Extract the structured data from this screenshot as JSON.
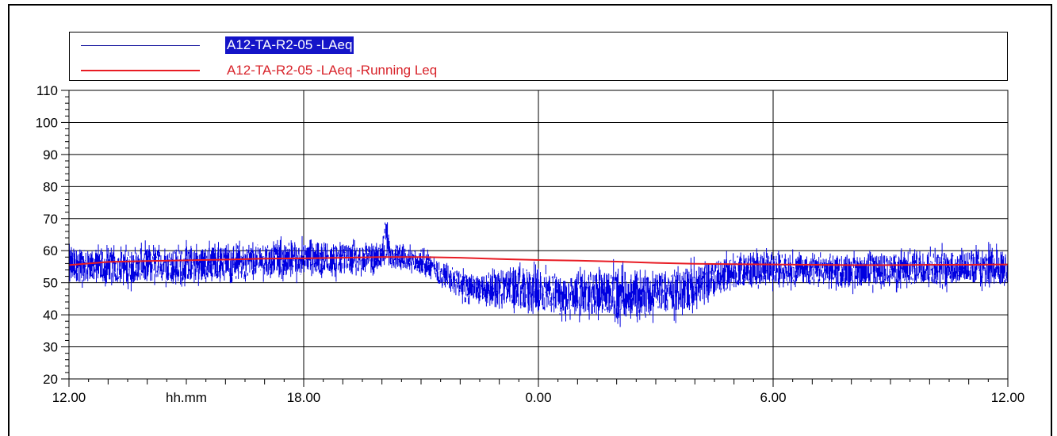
{
  "chart_data": {
    "type": "line",
    "title": "",
    "xlabel": "hh.mm",
    "ylabel": "",
    "xlim": [
      "12.00",
      "12.00 (+24h)"
    ],
    "ylim": [
      20,
      110
    ],
    "grid": true,
    "legend_placement": "top",
    "x_tick_labels": [
      "12.00",
      "18.00",
      "0.00",
      "6.00",
      "12.00"
    ],
    "y_tick_labels": [
      "110",
      "100",
      "90",
      "80",
      "70",
      "60",
      "50",
      "40",
      "30",
      "20"
    ],
    "series": [
      {
        "name": "A12-TA-R2-05 -LAeq",
        "color": "#0000e0",
        "hours": [
          0,
          1,
          2,
          3,
          4,
          5,
          6,
          7,
          8,
          8.1,
          8.2,
          9,
          9.5,
          10,
          10.5,
          11,
          11.5,
          12,
          12.5,
          13,
          13.5,
          14,
          14.5,
          15,
          15.5,
          16,
          16.5,
          17,
          17.5,
          18,
          18.5,
          19,
          20,
          21,
          22,
          23,
          24
        ],
        "lower": [
          47,
          46,
          47,
          47,
          48,
          49,
          49,
          50,
          52,
          50,
          53,
          51,
          47,
          43,
          41,
          40,
          38,
          37,
          36,
          36,
          36,
          35,
          35,
          36,
          37,
          39,
          43,
          46,
          46,
          47,
          47,
          47,
          46,
          46,
          46,
          46,
          46
        ],
        "upper": [
          64,
          63,
          64,
          64,
          65,
          65,
          66,
          65,
          64,
          75,
          64,
          62,
          59,
          56,
          55,
          57,
          58,
          58,
          56,
          57,
          57,
          58,
          58,
          57,
          58,
          59,
          60,
          61,
          62,
          62,
          62,
          61,
          61,
          62,
          63,
          64,
          63
        ]
      },
      {
        "name": "A12-TA-R2-05 -LAeq -Running Leq",
        "color": "#e81c24",
        "hours": [
          0,
          0.5,
          1,
          2,
          3,
          4,
          5,
          6,
          7,
          8,
          9,
          10,
          11,
          12,
          13,
          14,
          15,
          16,
          17,
          18,
          19,
          20,
          21,
          22,
          23,
          24
        ],
        "values": [
          55.5,
          56.0,
          56.5,
          56.8,
          57.0,
          57.2,
          57.5,
          57.6,
          57.8,
          58.0,
          58.0,
          57.8,
          57.4,
          57.1,
          56.9,
          56.6,
          56.2,
          55.9,
          55.8,
          55.7,
          55.6,
          55.5,
          55.5,
          55.6,
          55.6,
          55.7
        ]
      }
    ]
  }
}
